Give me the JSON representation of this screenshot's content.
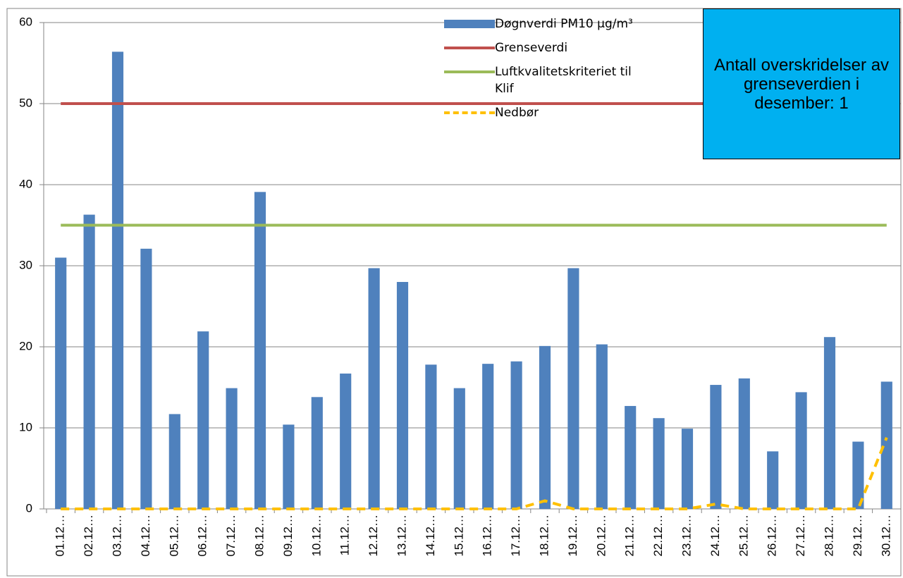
{
  "chart_data": {
    "type": "bar",
    "categories": [
      "01.12…",
      "02.12…",
      "03.12…",
      "04.12…",
      "05.12…",
      "06.12…",
      "07.12…",
      "08.12…",
      "09.12…",
      "10.12…",
      "11.12…",
      "12.12…",
      "13.12…",
      "14.12…",
      "15.12…",
      "16.12…",
      "17.12…",
      "18.12…",
      "19.12…",
      "20.12…",
      "21.12…",
      "22.12…",
      "23.12…",
      "24.12…",
      "25.12…",
      "26.12…",
      "27.12…",
      "28.12…",
      "29.12…",
      "30.12…"
    ],
    "series": [
      {
        "name": "Døgnverdi PM10 µg/m³",
        "type": "bar",
        "color": "#4f81bd",
        "values": [
          31,
          36.3,
          56.4,
          32.1,
          11.7,
          21.9,
          14.9,
          39.1,
          10.4,
          13.8,
          16.7,
          29.7,
          28,
          17.8,
          14.9,
          17.9,
          18.2,
          20.1,
          29.7,
          20.3,
          12.7,
          11.2,
          9.9,
          15.3,
          16.1,
          7.1,
          14.4,
          21.2,
          8.3,
          15.7
        ]
      },
      {
        "name": "Grenseverdi",
        "type": "line",
        "color": "#c0504d",
        "values": [
          50,
          50,
          50,
          50,
          50,
          50,
          50,
          50,
          50,
          50,
          50,
          50,
          50,
          50,
          50,
          50,
          50,
          50,
          50,
          50,
          50,
          50,
          50,
          50,
          50,
          50,
          50,
          50,
          50,
          50
        ]
      },
      {
        "name": "Luftkvalitetskriteriet til Klif",
        "type": "line",
        "color": "#9bbb59",
        "values": [
          35,
          35,
          35,
          35,
          35,
          35,
          35,
          35,
          35,
          35,
          35,
          35,
          35,
          35,
          35,
          35,
          35,
          35,
          35,
          35,
          35,
          35,
          35,
          35,
          35,
          35,
          35,
          35,
          35,
          35
        ]
      },
      {
        "name": "Nedbør",
        "type": "line",
        "dashed": true,
        "color": "#ffc000",
        "values": [
          0,
          0,
          0,
          0,
          0,
          0,
          0,
          0,
          0,
          0,
          0,
          0,
          0,
          0,
          0,
          0,
          0,
          1,
          0,
          0,
          0,
          0,
          0,
          0.6,
          0,
          0,
          0,
          0,
          0,
          8.8
        ]
      }
    ],
    "annotation": "Antall overskridelser av grenseverdien i desember: 1",
    "ylim": [
      0,
      60
    ],
    "yticks": [
      0,
      10,
      20,
      30,
      40,
      50,
      60
    ],
    "grid": true
  }
}
